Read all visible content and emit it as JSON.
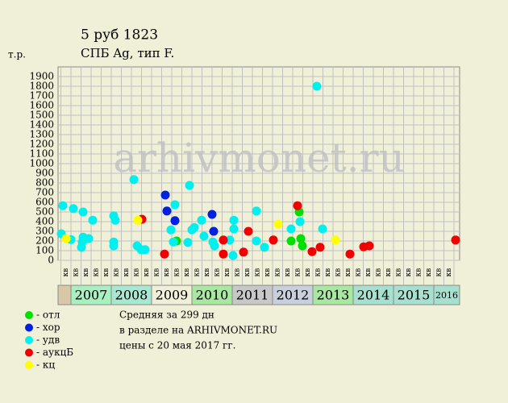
{
  "chart_data": {
    "type": "scatter",
    "title": "5 руб 1823",
    "subtitle": "СПБ Ag, тип F.",
    "y_label": "т.р.",
    "watermark": "arhivmonet.ru",
    "xlim": [
      2006.68,
      2016.64
    ],
    "ylim": [
      0,
      2000
    ],
    "yticks": [
      0,
      100,
      200,
      300,
      400,
      500,
      600,
      700,
      800,
      900,
      1000,
      1100,
      1200,
      1300,
      1400,
      1500,
      1600,
      1700,
      1800,
      1900
    ],
    "grid": true,
    "quarter_label": "кв",
    "years": [
      null,
      "2007",
      "2008",
      "2009",
      "2010",
      "2011",
      "2012",
      "2013",
      "2014",
      "2015",
      "2016"
    ],
    "year_colors": [
      "#d8c8a8",
      "#a8f0c0",
      "#a8e8d0",
      "#f0f0d8",
      "#a8e8a0",
      "#c8c8c8",
      "#c8d0dc",
      "#a8e8a0",
      "#a8e0d0",
      "#a8e0d0",
      "#a8e0d0"
    ],
    "series": [
      {
        "name": "- отл",
        "color": "#00e000",
        "x": [
          2009.62,
          2012.46,
          2012.66,
          2012.7,
          2012.74
        ],
        "values": [
          200,
          200,
          500,
          225,
          150
        ]
      },
      {
        "name": "- хор",
        "color": "#0020e0",
        "x": [
          2009.34,
          2009.38,
          2009.58,
          2010.5,
          2010.54
        ],
        "values": [
          675,
          510,
          410,
          475,
          300
        ]
      },
      {
        "name": "- удв",
        "color": "#00f0f0",
        "x": [
          2006.8,
          2006.76,
          2007.0,
          2007.06,
          2007.26,
          2007.3,
          2007.3,
          2007.44,
          2007.54,
          2007.28,
          2008.06,
          2008.1,
          2008.06,
          2008.06,
          2008.56,
          2008.64,
          2008.74,
          2008.84,
          2009.58,
          2009.48,
          2009.54,
          2009.94,
          2009.9,
          2010.0,
          2010.06,
          2010.24,
          2010.3,
          2010.52,
          2010.56,
          2010.94,
          2011.04,
          2011.04,
          2011.02,
          2011.6,
          2011.6,
          2011.8,
          2012.46,
          2012.68,
          2013.1,
          2013.24
        ],
        "values": [
          565,
          275,
          215,
          535,
          135,
          500,
          240,
          225,
          415,
          190,
          460,
          415,
          190,
          150,
          835,
          150,
          110,
          110,
          575,
          315,
          190,
          775,
          185,
          315,
          340,
          415,
          250,
          190,
          150,
          210,
          415,
          325,
          50,
          510,
          200,
          135,
          325,
          400,
          1800,
          325
        ]
      },
      {
        "name": "- аукцБ",
        "color": "#f00000",
        "x": [
          2008.76,
          2009.32,
          2010.78,
          2010.78,
          2011.28,
          2011.4,
          2012.02,
          2012.62,
          2012.98,
          2013.18,
          2013.92,
          2014.26,
          2014.4,
          2016.54
        ],
        "values": [
          425,
          65,
          210,
          65,
          85,
          300,
          210,
          565,
          90,
          135,
          65,
          140,
          150,
          210
        ]
      },
      {
        "name": "- кц",
        "color": "#ffff00",
        "x": [
          2006.88,
          2008.66,
          2012.14,
          2013.56
        ],
        "values": [
          225,
          415,
          375,
          210
        ]
      }
    ],
    "notes": [
      "Средняя за 299 дн",
      "в разделе на ARHIVMONET.RU",
      "цены с 20 мая 2017 гг."
    ]
  }
}
